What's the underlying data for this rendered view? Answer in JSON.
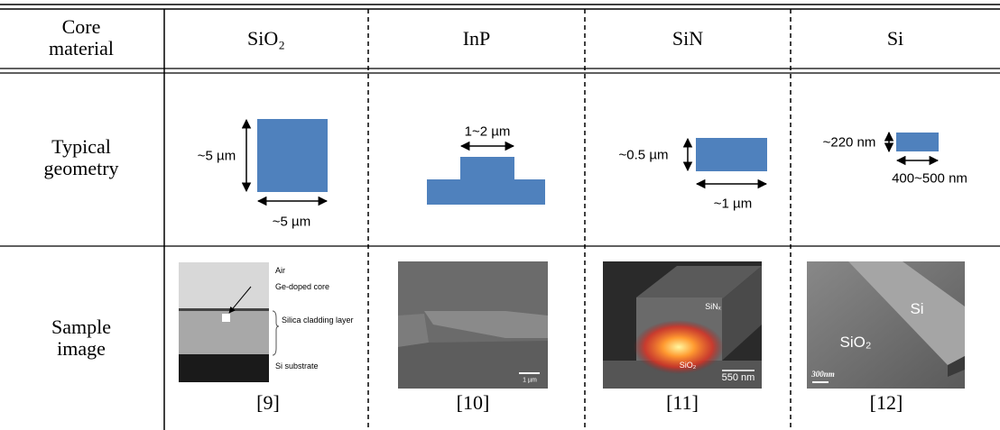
{
  "header": {
    "label": "Core material",
    "materials": [
      "SiO₂",
      "InP",
      "SiN",
      "Si"
    ]
  },
  "geometry": {
    "label": "Typical geometry",
    "dims": [
      [
        "~5 µm",
        "~5 µm"
      ],
      [
        "1~2 µm"
      ],
      [
        "~0.5 µm",
        "~1 µm"
      ],
      [
        "~220 nm",
        "400~500 nm"
      ]
    ]
  },
  "samples": {
    "label": "Sample image",
    "images": [
      {
        "labels": [
          "Air",
          "Ge-doped core",
          "Silica cladding layer",
          "Si substrate"
        ],
        "ref": "[9]"
      },
      {
        "labels": [
          "1 µm"
        ],
        "ref": "[10]"
      },
      {
        "labels": [
          "SiNₓ",
          "SiO₂",
          "550 nm"
        ],
        "ref": "[11]"
      },
      {
        "labels": [
          "Si",
          "SiO₂",
          "300nm"
        ],
        "ref": "[12]"
      }
    ]
  }
}
